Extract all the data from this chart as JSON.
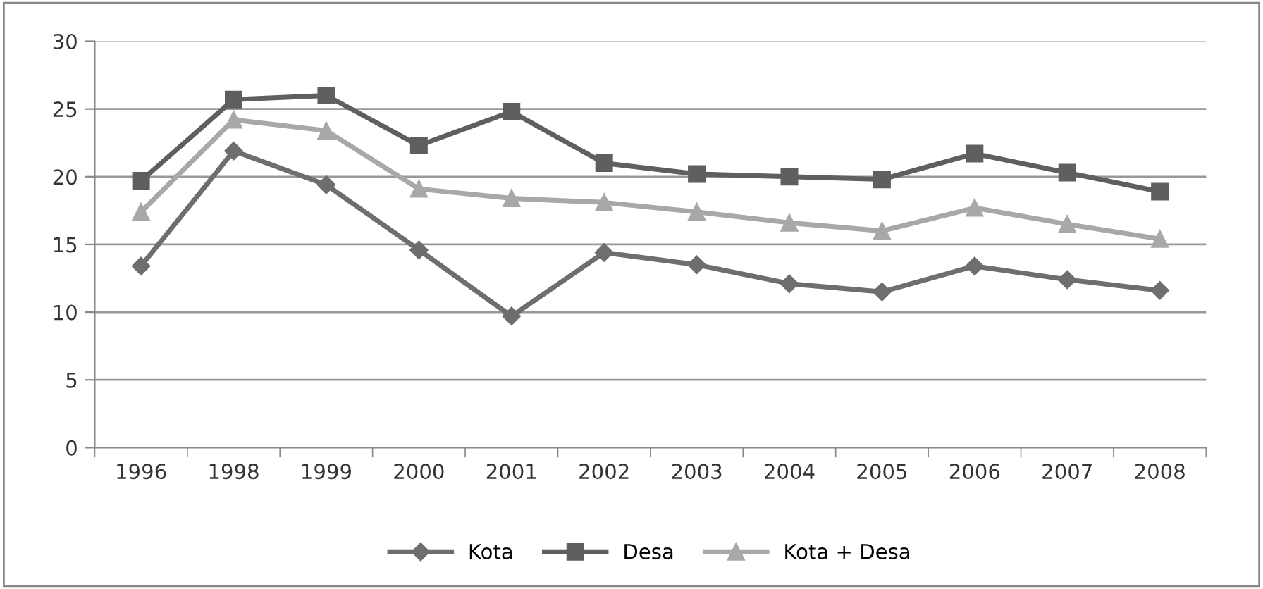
{
  "chart_data": {
    "type": "line",
    "categories": [
      "1996",
      "1998",
      "1999",
      "2000",
      "2001",
      "2002",
      "2003",
      "2004",
      "2005",
      "2006",
      "2007",
      "2008"
    ],
    "series": [
      {
        "name": "Kota",
        "color": "#6e6e6e",
        "marker": "diamond",
        "values": [
          13.4,
          21.9,
          19.4,
          14.6,
          9.7,
          14.4,
          13.5,
          12.1,
          11.5,
          13.4,
          12.4,
          11.6
        ]
      },
      {
        "name": "Desa",
        "color": "#5f5f5f",
        "marker": "square",
        "values": [
          19.7,
          25.7,
          26.0,
          22.3,
          24.8,
          21.0,
          20.2,
          20.0,
          19.8,
          21.7,
          20.3,
          18.9
        ]
      },
      {
        "name": "Kota + Desa",
        "color": "#a8a8a8",
        "marker": "triangle",
        "values": [
          17.4,
          24.2,
          23.4,
          19.1,
          18.4,
          18.1,
          17.4,
          16.6,
          16.0,
          17.7,
          16.5,
          15.4
        ]
      }
    ],
    "ylim": [
      0,
      30
    ],
    "yticks": [
      0,
      5,
      10,
      15,
      20,
      25,
      30
    ],
    "grid": "y",
    "legend": "bottom",
    "line_style": "solid"
  }
}
